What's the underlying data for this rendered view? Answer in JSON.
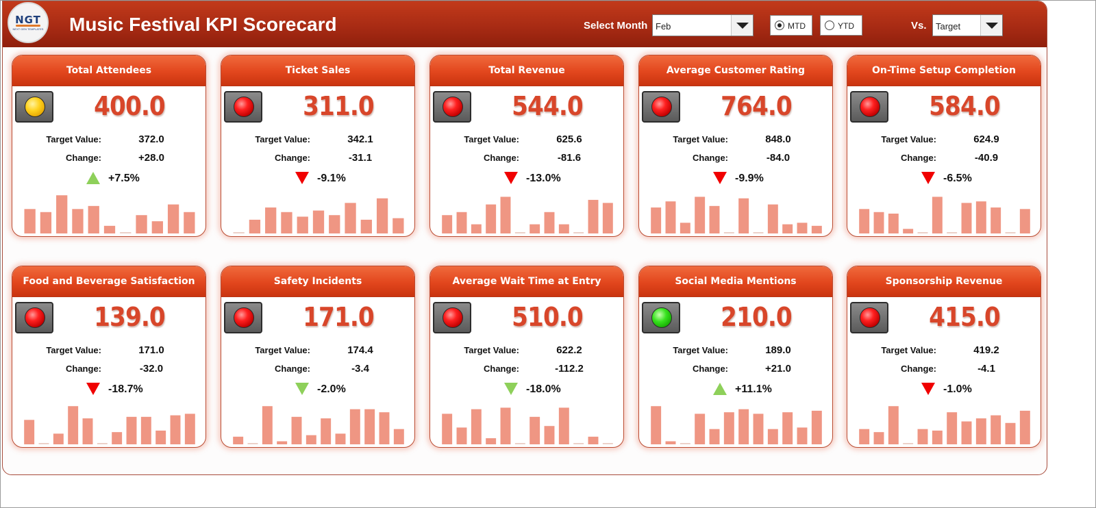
{
  "header": {
    "logo_text": "NGT",
    "logo_subtext": "NEXT GEN TEMPLATES",
    "title": "Music Festival KPI Scorecard",
    "select_month_label": "Select Month",
    "month_value": "Feb",
    "radio_mtd": "MTD",
    "radio_ytd": "YTD",
    "radio_selected": "MTD",
    "vs_label": "Vs.",
    "vs_value": "Target"
  },
  "labels": {
    "target": "Target Value:",
    "change": "Change:"
  },
  "colors": {
    "accent": "#d8462a",
    "header": "#b0301a",
    "spark_bar": "#ef9683",
    "up": "#8ed05a",
    "down": "#f00000"
  },
  "cards": [
    {
      "title": "Total Attendees",
      "value": "400.0",
      "target": "372.0",
      "change": "+28.0",
      "pct": "+7.5%",
      "trend": "up",
      "light": "yellow",
      "spark": [
        32,
        28,
        50,
        32,
        36,
        10,
        0,
        24,
        16,
        38,
        28
      ]
    },
    {
      "title": "Ticket Sales",
      "value": "311.0",
      "target": "342.1",
      "change": "-31.1",
      "pct": "-9.1%",
      "trend": "down",
      "light": "red",
      "spark": [
        0,
        18,
        34,
        28,
        22,
        30,
        24,
        40,
        18,
        46,
        20
      ]
    },
    {
      "title": "Total Revenue",
      "value": "544.0",
      "target": "625.6",
      "change": "-81.6",
      "pct": "-13.0%",
      "trend": "down",
      "light": "red",
      "spark": [
        24,
        28,
        12,
        38,
        48,
        0,
        12,
        28,
        12,
        0,
        44,
        40
      ]
    },
    {
      "title": "Average Customer Rating",
      "value": "764.0",
      "target": "848.0",
      "change": "-84.0",
      "pct": "-9.9%",
      "trend": "down",
      "light": "red",
      "spark": [
        34,
        42,
        14,
        48,
        36,
        0,
        46,
        0,
        38,
        12,
        14,
        10
      ]
    },
    {
      "title": "On-Time Setup Completion",
      "value": "584.0",
      "target": "624.9",
      "change": "-40.9",
      "pct": "-6.5%",
      "trend": "down",
      "light": "red",
      "spark": [
        32,
        28,
        26,
        6,
        0,
        48,
        0,
        40,
        42,
        34,
        0,
        32
      ]
    },
    {
      "title": "Food and Beverage Satisfaction",
      "value": "139.0",
      "target": "171.0",
      "change": "-32.0",
      "pct": "-18.7%",
      "trend": "down",
      "light": "red",
      "spark": [
        32,
        0,
        14,
        50,
        34,
        0,
        16,
        36,
        36,
        18,
        38,
        40
      ]
    },
    {
      "title": "Safety Incidents",
      "value": "171.0",
      "target": "174.4",
      "change": "-3.4",
      "pct": "-2.0%",
      "trend": "down-green",
      "light": "red",
      "spark": [
        10,
        0,
        50,
        4,
        36,
        12,
        34,
        14,
        46,
        46,
        42,
        20
      ]
    },
    {
      "title": "Average Wait Time at Entry",
      "value": "510.0",
      "target": "622.2",
      "change": "-112.2",
      "pct": "-18.0%",
      "trend": "down-green",
      "light": "red",
      "spark": [
        40,
        22,
        46,
        8,
        48,
        0,
        36,
        24,
        48,
        0,
        10,
        0
      ]
    },
    {
      "title": "Social Media Mentions",
      "value": "210.0",
      "target": "189.0",
      "change": "+21.0",
      "pct": "+11.1%",
      "trend": "up",
      "light": "green",
      "spark": [
        50,
        4,
        0,
        40,
        20,
        42,
        46,
        40,
        20,
        42,
        22,
        44
      ]
    },
    {
      "title": "Sponsorship Revenue",
      "value": "415.0",
      "target": "419.2",
      "change": "-4.1",
      "pct": "-1.0%",
      "trend": "down",
      "light": "red",
      "spark": [
        20,
        16,
        50,
        0,
        20,
        18,
        42,
        30,
        34,
        38,
        28,
        44
      ]
    }
  ]
}
